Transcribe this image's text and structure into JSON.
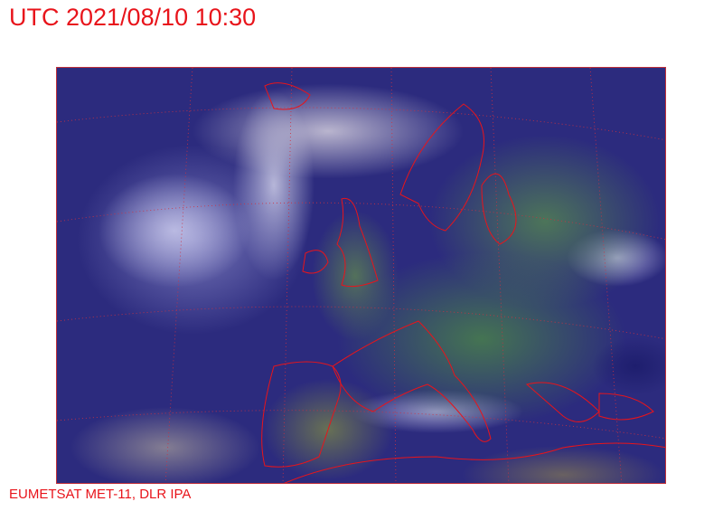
{
  "title": "UTC 2021/08/10 10:30",
  "credit": "EUMETSAT MET-11, DLR IPA",
  "colors": {
    "text": "#e8141b",
    "border": "#c0303a",
    "sea": "#2c2b7e",
    "land": "#4f7d57",
    "cloud": "#c8c8eb"
  },
  "map": {
    "type": "satellite-composite",
    "region": "Europe / North Atlantic"
  }
}
